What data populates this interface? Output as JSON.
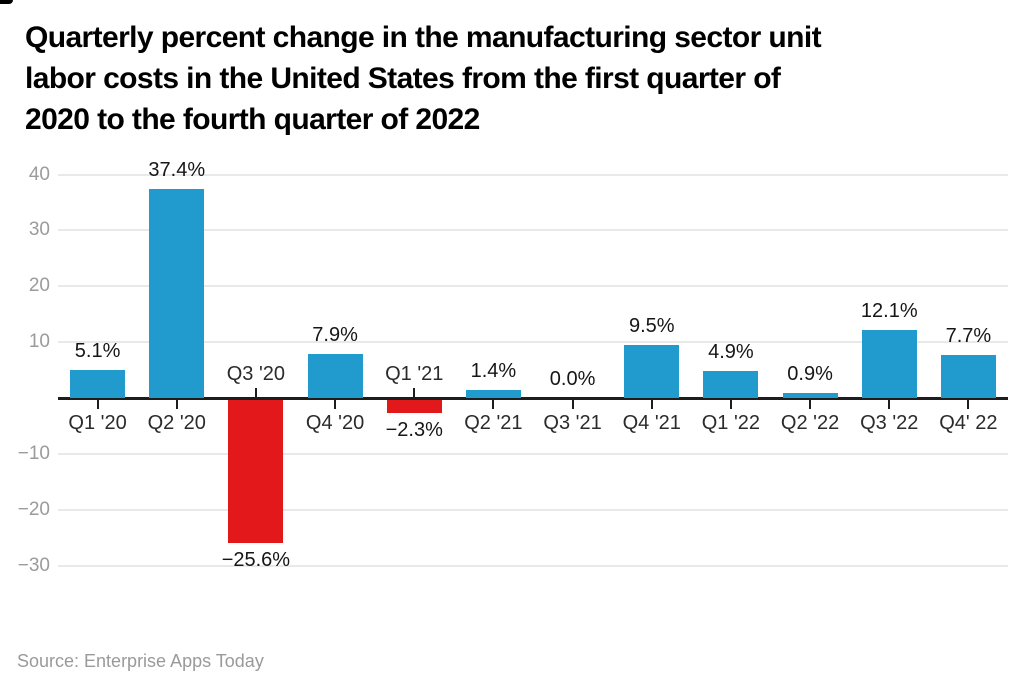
{
  "title_lines": [
    "Quarterly percent change in the manufacturing sector unit",
    "labor costs in the United States from the first quarter of",
    "2020 to the fourth quarter of 2022"
  ],
  "source": "Source: Enterprise Apps Today",
  "colors": {
    "positive_bar": "#219ACD",
    "negative_bar": "#E2181B",
    "gridline": "#e9e9e9",
    "axis_line": "#1d1d1d",
    "y_axis_label": "#9b9b9b",
    "value_label": "#161616",
    "category_label": "#2b2b2b"
  },
  "chart_data": {
    "type": "bar",
    "title": "Quarterly percent change in the manufacturing sector unit labor costs in the United States from the first quarter of 2020 to the fourth quarter of 2022",
    "categories": [
      "Q1 '20",
      "Q2 '20",
      "Q3 '20",
      "Q4 '20",
      "Q1 '21",
      "Q2 '21",
      "Q3 '21",
      "Q4 '21",
      "Q1 '22",
      "Q2 '22",
      "Q3 '22",
      "Q4' 22"
    ],
    "values": [
      5.1,
      37.4,
      -25.6,
      7.9,
      -2.3,
      1.4,
      0.0,
      9.5,
      4.9,
      0.9,
      12.1,
      7.7
    ],
    "value_labels": [
      "5.1%",
      "37.4%",
      "−25.6%",
      "7.9%",
      "−2.3%",
      "1.4%",
      "0.0%",
      "9.5%",
      "4.9%",
      "0.9%",
      "12.1%",
      "7.7%"
    ],
    "xlabel": "",
    "ylabel": "",
    "y_ticks": [
      40,
      30,
      20,
      10,
      -10,
      -20,
      -30
    ],
    "y_tick_labels": [
      "40",
      "30",
      "20",
      "10",
      "−10",
      "−20",
      "−30"
    ],
    "ylim": [
      -30,
      40
    ],
    "grid": true,
    "legend": false,
    "bar_color_rule": "blue #219ACD for values >= 0, red #E2181B for values < 0"
  }
}
